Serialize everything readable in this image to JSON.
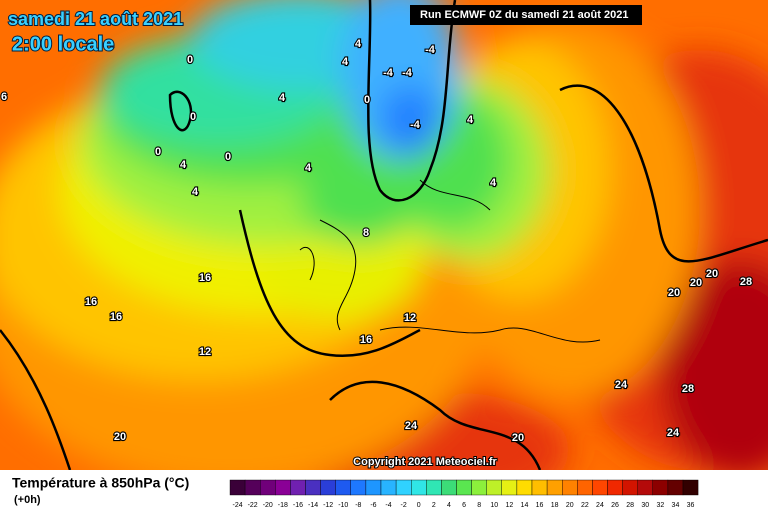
{
  "header": {
    "date": "samedi 21 août 2021",
    "time": "2:00 locale",
    "run": "Run ECMWF 0Z du samedi 21 août 2021"
  },
  "copyright": "Copyright 2021 Meteociel.fr",
  "footer": {
    "title": "Température à 850hPa (°C)",
    "lead": "(+0h)"
  },
  "contour_labels": [
    0,
    0,
    0,
    0,
    4,
    4,
    4,
    4,
    4,
    4,
    0,
    -4,
    -4,
    -4,
    -4,
    4,
    4,
    6,
    8,
    16,
    16,
    16,
    12,
    12,
    16,
    20,
    24,
    20,
    24,
    28,
    24,
    20,
    20,
    20,
    28
  ],
  "colorbar": {
    "labels": [
      -24,
      -22,
      -20,
      -18,
      -16,
      -14,
      -12,
      -10,
      -8,
      -6,
      -4,
      -2,
      0,
      2,
      4,
      6,
      8,
      10,
      12,
      14,
      16,
      18,
      20,
      22,
      24,
      26,
      28,
      30,
      32,
      34,
      36
    ],
    "colors": [
      "#3a0038",
      "#55005a",
      "#70007a",
      "#8a0096",
      "#7020b0",
      "#4a30c0",
      "#2a3ed8",
      "#1e5af0",
      "#1e78ff",
      "#1e96ff",
      "#28b4ff",
      "#30d2ff",
      "#30e6e6",
      "#30e6b4",
      "#3cdc78",
      "#5ae650",
      "#8cf03c",
      "#bef028",
      "#e6f014",
      "#ffdc00",
      "#ffbe00",
      "#ffa000",
      "#ff8200",
      "#ff6400",
      "#ff4600",
      "#f02800",
      "#d21400",
      "#b40a0a",
      "#8c0000",
      "#640000",
      "#320000"
    ]
  }
}
